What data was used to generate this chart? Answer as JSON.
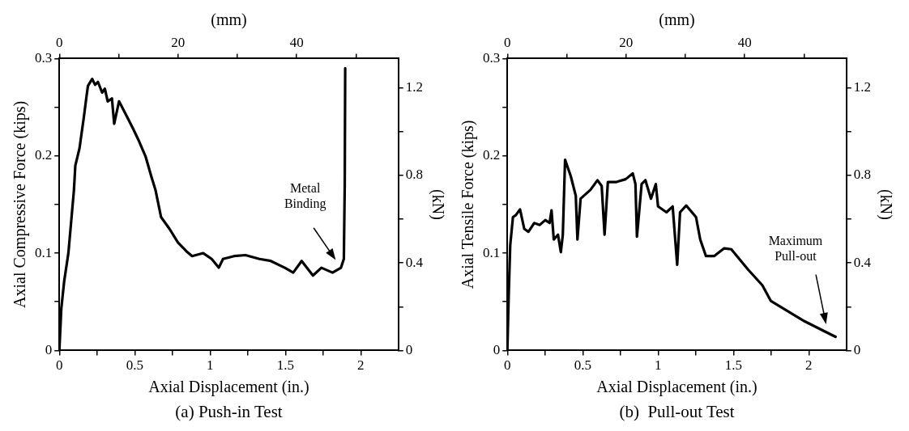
{
  "chart_data": [
    {
      "type": "line",
      "title": "(a) Push-in Test",
      "xlabel": "Axial Displacement (in.)",
      "x2label": "(mm)",
      "ylabel": "Axial Compressive Force (kips)",
      "y2label": "(kN)",
      "marker": "none",
      "line_style": "solid",
      "grid": false,
      "legend": false,
      "xlim": [
        0,
        2.25
      ],
      "xticks": [
        0,
        {
          "value": 0.25,
          "label": null
        },
        0.5,
        {
          "value": 0.75,
          "label": null
        },
        1,
        {
          "value": 1.25,
          "label": null
        },
        1.5,
        {
          "value": 1.75,
          "label": null
        },
        2
      ],
      "x2lim": [
        0,
        57.15
      ],
      "x2ticks": [
        0,
        {
          "value": 10,
          "label": null
        },
        20,
        {
          "value": 30,
          "label": null
        },
        40,
        {
          "value": 50,
          "label": null
        }
      ],
      "ylim": [
        0,
        0.3
      ],
      "yticks": [
        0,
        {
          "value": 0.05,
          "label": null
        },
        0.1,
        {
          "value": 0.15,
          "label": null
        },
        0.2,
        {
          "value": 0.25,
          "label": null
        },
        0.3
      ],
      "y2lim": [
        0,
        1.334
      ],
      "y2ticks": [
        0,
        {
          "value": 0.2,
          "label": null
        },
        0.4,
        {
          "value": 0.6,
          "label": null
        },
        0.8,
        {
          "value": 1.0,
          "label": null
        },
        1.2
      ],
      "annotations": [
        "Metal Binding"
      ],
      "series": [
        {
          "color": "#000000",
          "x": [
            0,
            0.013,
            0.032,
            0.06,
            0.097,
            0.106,
            0.134,
            0.162,
            0.181,
            0.19,
            0.218,
            0.237,
            0.256,
            0.284,
            0.302,
            0.321,
            0.349,
            0.364,
            0.396,
            0.433,
            0.489,
            0.526,
            0.573,
            0.61,
            0.638,
            0.675,
            0.731,
            0.787,
            0.843,
            0.881,
            0.955,
            1.011,
            1.058,
            1.086,
            1.16,
            1.235,
            1.328,
            1.403,
            1.496,
            1.552,
            1.608,
            1.683,
            1.739,
            1.813,
            1.869,
            1.888,
            1.894,
            1.897
          ],
          "values": [
            0,
            0.043,
            0.071,
            0.1,
            0.165,
            0.19,
            0.208,
            0.239,
            0.262,
            0.272,
            0.279,
            0.273,
            0.276,
            0.265,
            0.269,
            0.256,
            0.259,
            0.233,
            0.256,
            0.245,
            0.228,
            0.216,
            0.199,
            0.179,
            0.165,
            0.137,
            0.125,
            0.111,
            0.102,
            0.097,
            0.1,
            0.094,
            0.085,
            0.094,
            0.097,
            0.098,
            0.094,
            0.092,
            0.085,
            0.08,
            0.092,
            0.077,
            0.085,
            0.08,
            0.085,
            0.094,
            0.171,
            0.29
          ]
        }
      ]
    },
    {
      "type": "line",
      "title": "(b)  Pull-out Test",
      "xlabel": "Axial Displacement (in.)",
      "x2label": "(mm)",
      "ylabel": "Axial Tensile Force (kips)",
      "y2label": "(kN)",
      "marker": "none",
      "line_style": "solid",
      "grid": false,
      "legend": false,
      "xlim": [
        0,
        2.25
      ],
      "xticks": [
        0,
        {
          "value": 0.25,
          "label": null
        },
        0.5,
        {
          "value": 0.75,
          "label": null
        },
        1,
        {
          "value": 1.25,
          "label": null
        },
        1.5,
        {
          "value": 1.75,
          "label": null
        },
        2
      ],
      "x2lim": [
        0,
        57.15
      ],
      "x2ticks": [
        0,
        {
          "value": 10,
          "label": null
        },
        20,
        {
          "value": 30,
          "label": null
        },
        40,
        {
          "value": 50,
          "label": null
        }
      ],
      "ylim": [
        0,
        0.3
      ],
      "yticks": [
        0,
        {
          "value": 0.05,
          "label": null
        },
        0.1,
        {
          "value": 0.15,
          "label": null
        },
        0.2,
        {
          "value": 0.25,
          "label": null
        },
        0.3
      ],
      "y2lim": [
        0,
        1.334
      ],
      "y2ticks": [
        0,
        {
          "value": 0.2,
          "label": null
        },
        0.4,
        {
          "value": 0.6,
          "label": null
        },
        0.8,
        {
          "value": 1.0,
          "label": null
        },
        1.2
      ],
      "annotations": [
        "Maximum Pull-out"
      ],
      "series": [
        {
          "color": "#000000",
          "x": [
            0,
            0.009,
            0.019,
            0.037,
            0.056,
            0.084,
            0.112,
            0.14,
            0.178,
            0.215,
            0.252,
            0.28,
            0.293,
            0.308,
            0.336,
            0.355,
            0.368,
            0.383,
            0.421,
            0.454,
            0.465,
            0.486,
            0.551,
            0.598,
            0.626,
            0.645,
            0.667,
            0.72,
            0.785,
            0.832,
            0.85,
            0.86,
            0.891,
            0.916,
            0.953,
            0.985,
            1.0,
            1.056,
            1.097,
            1.127,
            1.146,
            1.187,
            1.252,
            1.28,
            1.318,
            1.372,
            1.439,
            1.486,
            1.598,
            1.692,
            1.748,
            1.972,
            2.178
          ],
          "values": [
            0,
            0.057,
            0.108,
            0.137,
            0.139,
            0.145,
            0.125,
            0.122,
            0.131,
            0.129,
            0.134,
            0.131,
            0.144,
            0.114,
            0.119,
            0.101,
            0.119,
            0.196,
            0.179,
            0.159,
            0.114,
            0.156,
            0.165,
            0.175,
            0.169,
            0.119,
            0.173,
            0.173,
            0.176,
            0.182,
            0.171,
            0.117,
            0.171,
            0.175,
            0.156,
            0.171,
            0.148,
            0.142,
            0.148,
            0.088,
            0.142,
            0.149,
            0.137,
            0.114,
            0.097,
            0.097,
            0.105,
            0.104,
            0.083,
            0.067,
            0.051,
            0.03,
            0.014
          ]
        }
      ]
    }
  ]
}
